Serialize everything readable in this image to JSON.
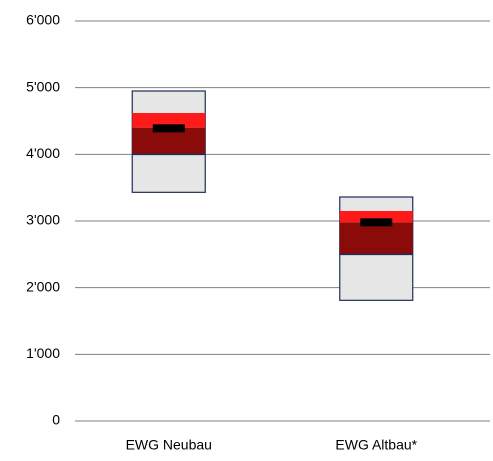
{
  "chart_data": {
    "type": "box",
    "categories": [
      "EWG Neubau",
      "EWG Altbau*"
    ],
    "range_min": [
      3430,
      1810
    ],
    "range_max": [
      4950,
      3360
    ],
    "core_low": [
      4000,
      2500
    ],
    "core_mid": [
      4400,
      2980
    ],
    "core_high": [
      4620,
      3150
    ],
    "marker": [
      4390,
      2980
    ],
    "colors": {
      "range": "#e6e6e6",
      "border": "#1f2d5a",
      "core": "#8b0a0a",
      "upper": "#ff1a1a",
      "marker": "#000000"
    },
    "ylim": [
      0,
      6000
    ],
    "yticks": [
      0,
      {
        "value": 1000,
        "label": "1'000"
      },
      {
        "value": 2000,
        "label": "2'000"
      },
      {
        "value": 3000,
        "label": "3'000"
      },
      {
        "value": 4000,
        "label": "4'000"
      },
      {
        "value": 5000,
        "label": "5'000"
      },
      {
        "value": 6000,
        "label": "6'000"
      }
    ],
    "grid": true
  }
}
